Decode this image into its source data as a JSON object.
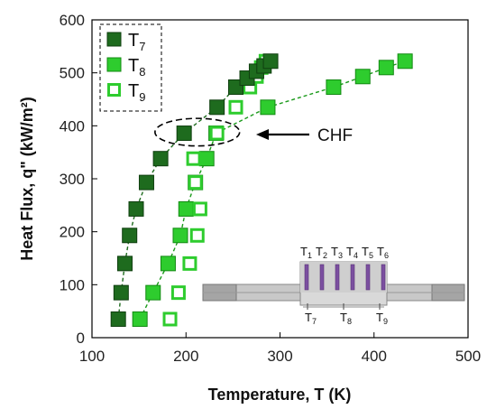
{
  "chart_data": {
    "type": "scatter",
    "xlabel": "Temperature, T (K)",
    "ylabel": "Heat Flux, q\" (kW/m²)",
    "xlim": [
      100,
      500
    ],
    "ylim": [
      0,
      600
    ],
    "xticks": [
      100,
      200,
      300,
      400,
      500
    ],
    "yticks": [
      0,
      100,
      200,
      300,
      400,
      500,
      600
    ],
    "grid": false,
    "legend_position": "top-left",
    "series": [
      {
        "name": "T7",
        "label_main": "T",
        "label_sub": "7",
        "style": "filled-dark",
        "color": "#1e6b1e",
        "x": [
          128,
          131,
          135,
          140,
          147,
          158,
          173,
          198,
          233,
          253,
          265,
          275,
          283,
          290
        ],
        "y": [
          35,
          85,
          140,
          193,
          243,
          293,
          338,
          386,
          435,
          473,
          490,
          503,
          513,
          522
        ],
        "dashed_connector": true
      },
      {
        "name": "T8",
        "label_main": "T",
        "label_sub": "8",
        "style": "filled-bright",
        "color": "#2ecc2e",
        "x": [
          151,
          165,
          181,
          194,
          200,
          210,
          222,
          232,
          287,
          357,
          388,
          413,
          433
        ],
        "y": [
          35,
          85,
          140,
          193,
          243,
          293,
          338,
          386,
          435,
          473,
          493,
          510,
          522
        ],
        "dashed_connector": true
      },
      {
        "name": "T9",
        "label_main": "T",
        "label_sub": "9",
        "style": "hollow",
        "color": "#2ecc2e",
        "x": [
          183,
          192,
          204,
          212,
          215,
          210,
          208,
          233,
          253,
          268,
          275,
          280,
          285
        ],
        "y": [
          35,
          85,
          140,
          193,
          243,
          293,
          338,
          386,
          435,
          473,
          493,
          510,
          522
        ],
        "dashed_connector": false
      }
    ],
    "annotations": [
      {
        "text": "CHF",
        "arrow": true,
        "ellipse_center": [
          212,
          388
        ],
        "ellipse_radius_data": [
          45,
          26
        ]
      }
    ],
    "inset": {
      "top_labels": [
        {
          "main": "T",
          "sub": "1"
        },
        {
          "main": "T",
          "sub": "2"
        },
        {
          "main": "T",
          "sub": "3"
        },
        {
          "main": "T",
          "sub": "4"
        },
        {
          "main": "T",
          "sub": "5"
        },
        {
          "main": "T",
          "sub": "6"
        }
      ],
      "bottom_labels": [
        {
          "main": "T",
          "sub": "7"
        },
        {
          "main": "T",
          "sub": "8"
        },
        {
          "main": "T",
          "sub": "9"
        }
      ]
    }
  }
}
